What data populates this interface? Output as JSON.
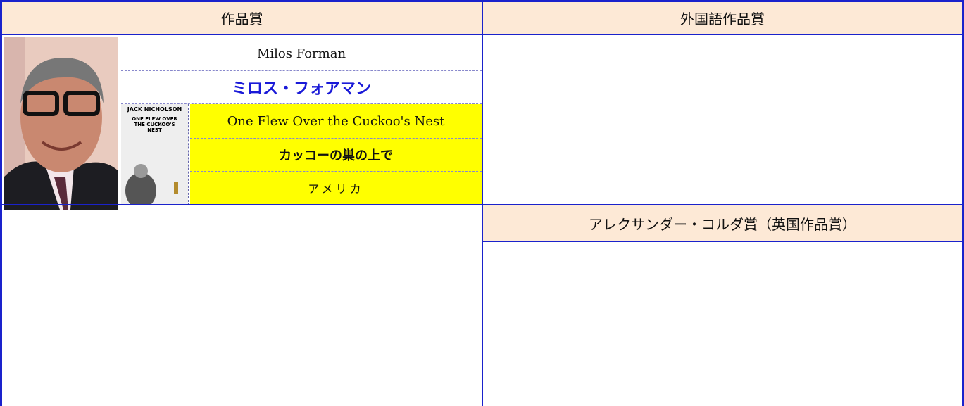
{
  "awards": [
    {
      "title": "作品賞",
      "winner": {
        "name_en": "Milos Forman",
        "name_ja": "ミロス・フォアマン",
        "film_en": "One Flew Over the Cuckoo's Nest",
        "film_ja": "カッコーの巣の上で",
        "country": "アメリカ",
        "poster": {
          "actor": "JACK NICHOLSON",
          "title": "ONE FLEW OVER THE CUCKOO'S NEST"
        }
      }
    },
    {
      "title": "外国語作品賞"
    },
    {
      "title": "アレクサンダー・コルダ賞（英国作品賞）"
    }
  ]
}
